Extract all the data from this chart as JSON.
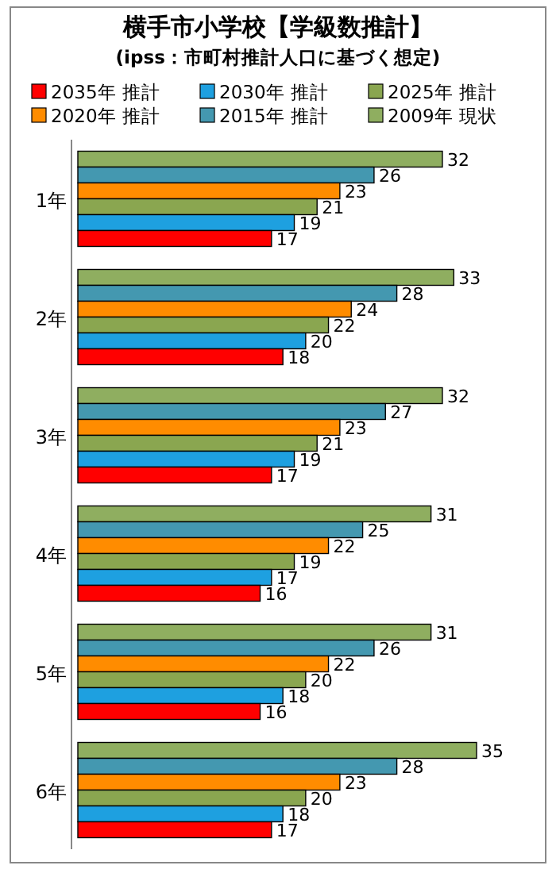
{
  "chart_data": {
    "type": "bar",
    "orientation": "horizontal",
    "title": "横手市小学校【学級数推計】",
    "subtitle": "(ipss：市町村推計人口に基づく想定)",
    "categories": [
      "1年",
      "2年",
      "3年",
      "4年",
      "5年",
      "6年"
    ],
    "series": [
      {
        "name": "2035年 推計",
        "color": "#ff0000",
        "values": [
          17,
          18,
          17,
          16,
          16,
          17
        ]
      },
      {
        "name": "2030年 推計",
        "color": "#1ea0e0",
        "values": [
          19,
          20,
          19,
          17,
          18,
          18
        ]
      },
      {
        "name": "2025年 推計",
        "color": "#8aa650",
        "values": [
          21,
          22,
          21,
          19,
          20,
          20
        ]
      },
      {
        "name": "2020年 推計",
        "color": "#ff8c00",
        "values": [
          23,
          24,
          23,
          22,
          22,
          23
        ]
      },
      {
        "name": "2015年 推計",
        "color": "#4498b0",
        "values": [
          26,
          28,
          27,
          25,
          26,
          28
        ]
      },
      {
        "name": "2009年 現状",
        "color": "#8fae60",
        "values": [
          32,
          33,
          32,
          31,
          31,
          35
        ]
      }
    ],
    "data_labels": true,
    "legend": "top"
  }
}
